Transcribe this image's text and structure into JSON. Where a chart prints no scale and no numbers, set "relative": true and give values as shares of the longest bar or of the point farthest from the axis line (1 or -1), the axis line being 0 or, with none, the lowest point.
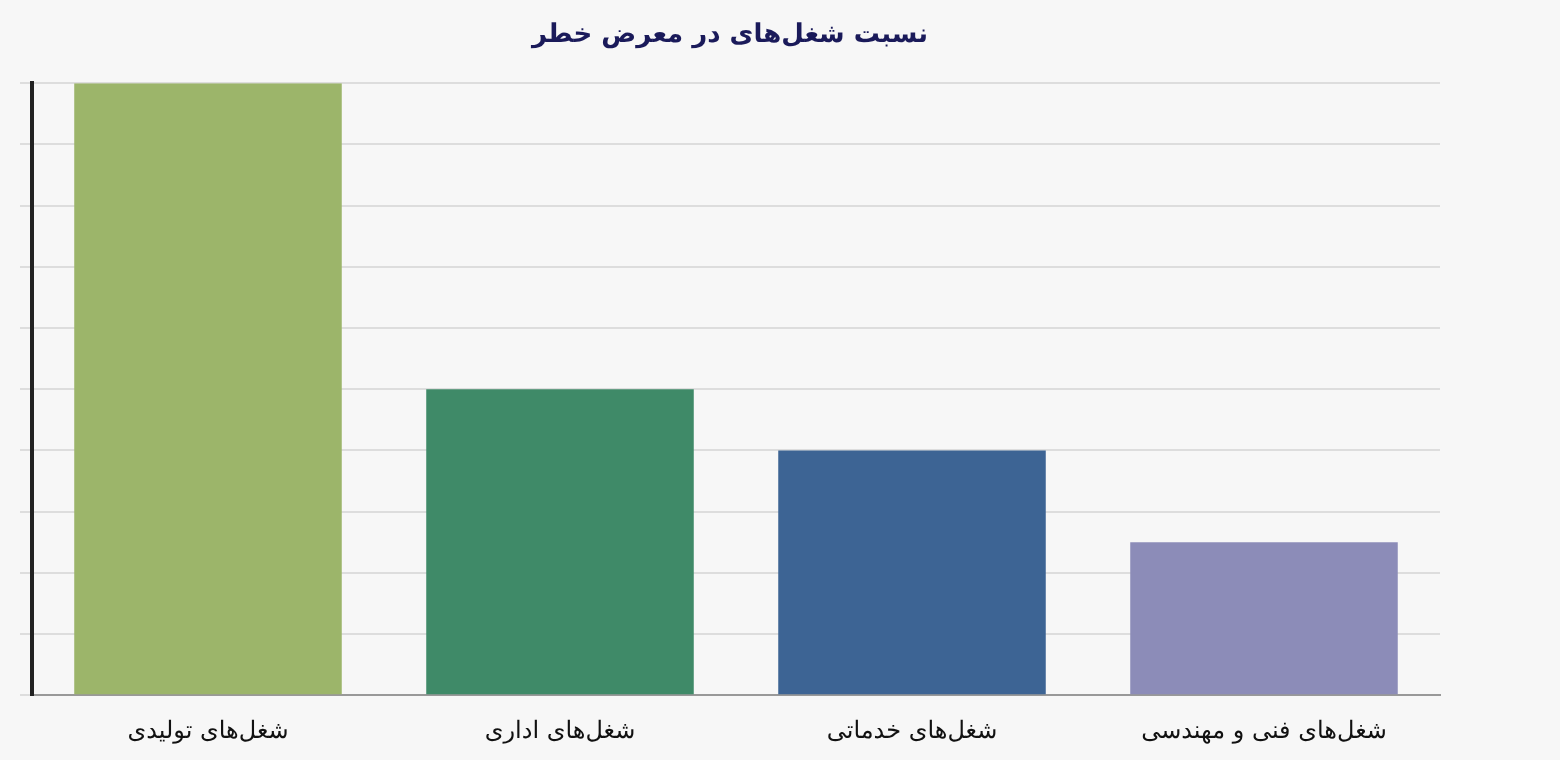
{
  "chart_data": {
    "type": "bar",
    "title": "نسبت شغل‌های در معرض خطر",
    "categories": [
      "شغل‌های تولیدی",
      "شغل‌های اداری",
      "شغل‌های خدماتی",
      "شغل‌های فنی و مهندسی"
    ],
    "values": [
      1,
      0.5,
      0.4,
      0.25
    ],
    "colors": [
      "#9cb56a",
      "#3f8a68",
      "#3d6494",
      "#8c8cb8"
    ],
    "relative": true,
    "grid": "y",
    "legend": false
  }
}
